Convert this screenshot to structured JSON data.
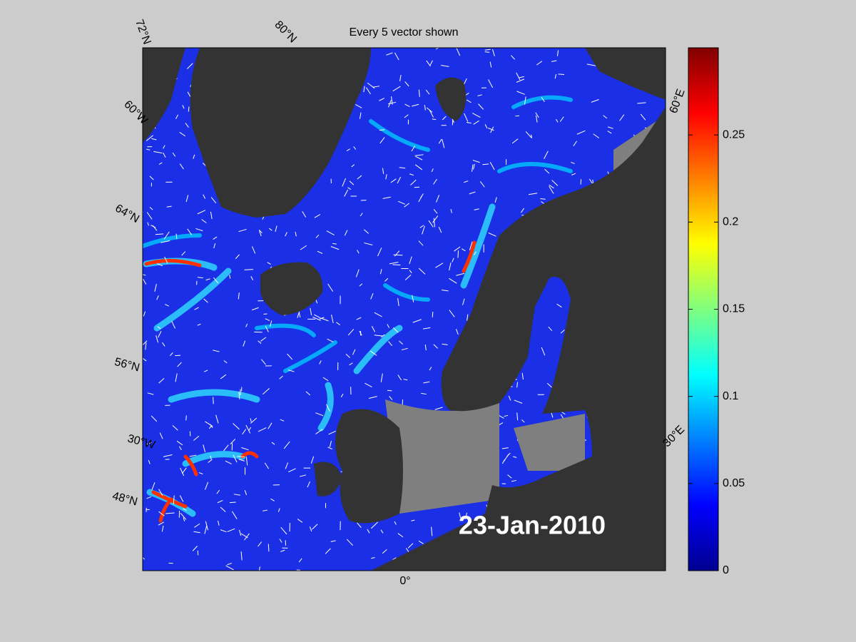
{
  "title": "Every 5 vector shown",
  "date_label": "23-Jan-2010",
  "map_labels": [
    "72°N",
    "80°N",
    "60°W",
    "64°N",
    "56°N",
    "30°W",
    "48°N",
    "0°",
    "30°E",
    "60°E"
  ],
  "colorbar": {
    "colormap": "jet",
    "lim": [
      0,
      0.3
    ],
    "ticks": [
      0,
      0.05,
      0.1,
      0.15,
      0.2,
      0.25
    ]
  }
}
